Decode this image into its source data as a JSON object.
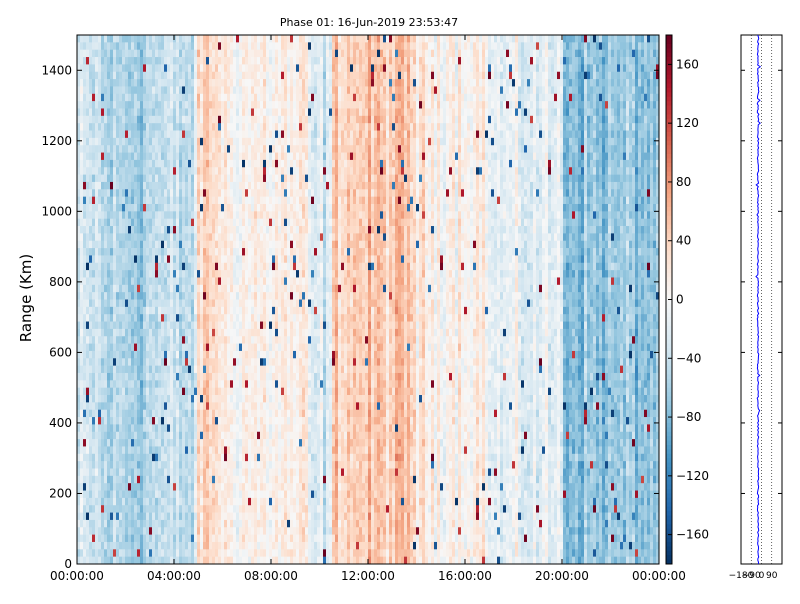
{
  "chart_data": [
    {
      "type": "heatmap",
      "title": "Phase 01: 16-Jun-2019 23:53:47",
      "xlabel": "",
      "ylabel": "Range (Km)",
      "x_range": [
        "00:00:00",
        "00:00:00 (+1 day)"
      ],
      "x_ticks": [
        "00:00:00",
        "04:00:00",
        "08:00:00",
        "12:00:00",
        "16:00:00",
        "20:00:00",
        "00:00:00"
      ],
      "ylim": [
        0,
        1500
      ],
      "y_ticks": [
        0,
        200,
        400,
        600,
        800,
        1000,
        1200,
        1400
      ],
      "colormap": "RdBu_r",
      "colorbar": {
        "range": [
          -180,
          180
        ],
        "ticks": [
          160,
          120,
          80,
          40,
          0,
          -40,
          -80,
          -120,
          -160
        ],
        "tick_labels": [
          "160",
          "120",
          "80",
          "40",
          "0",
          "−40",
          "−80",
          "−120",
          "−160"
        ]
      },
      "phase_pattern_by_hour": [
        {
          "hour_start": 0,
          "hour_end": 1,
          "mean_phase": -40
        },
        {
          "hour_start": 1,
          "hour_end": 3,
          "mean_phase": -55
        },
        {
          "hour_start": 3,
          "hour_end": 5,
          "mean_phase": -45
        },
        {
          "hour_start": 5,
          "hour_end": 6,
          "mean_phase": 35
        },
        {
          "hour_start": 6,
          "hour_end": 9.5,
          "mean_phase": 10
        },
        {
          "hour_start": 9.5,
          "hour_end": 10.5,
          "mean_phase": -30
        },
        {
          "hour_start": 10.5,
          "hour_end": 14,
          "mean_phase": 45
        },
        {
          "hour_start": 14,
          "hour_end": 17,
          "mean_phase": 15
        },
        {
          "hour_start": 17,
          "hour_end": 20,
          "mean_phase": -20
        },
        {
          "hour_start": 20,
          "hour_end": 24,
          "mean_phase": -70
        }
      ]
    },
    {
      "type": "line",
      "title": "",
      "xlabel": "",
      "ylabel": "",
      "x_ticks": [
        -180,
        -90,
        0,
        90
      ],
      "x_tick_labels": [
        "−180",
        "−90",
        "0",
        "90"
      ],
      "xlim": [
        -180,
        180
      ],
      "ylim": [
        0,
        1500
      ],
      "series_color": "#0000ff",
      "mean_profile_center": -30
    }
  ],
  "colors": {
    "line": "#0000ff",
    "axis": "#000000",
    "grid_dotted": "#000000"
  }
}
